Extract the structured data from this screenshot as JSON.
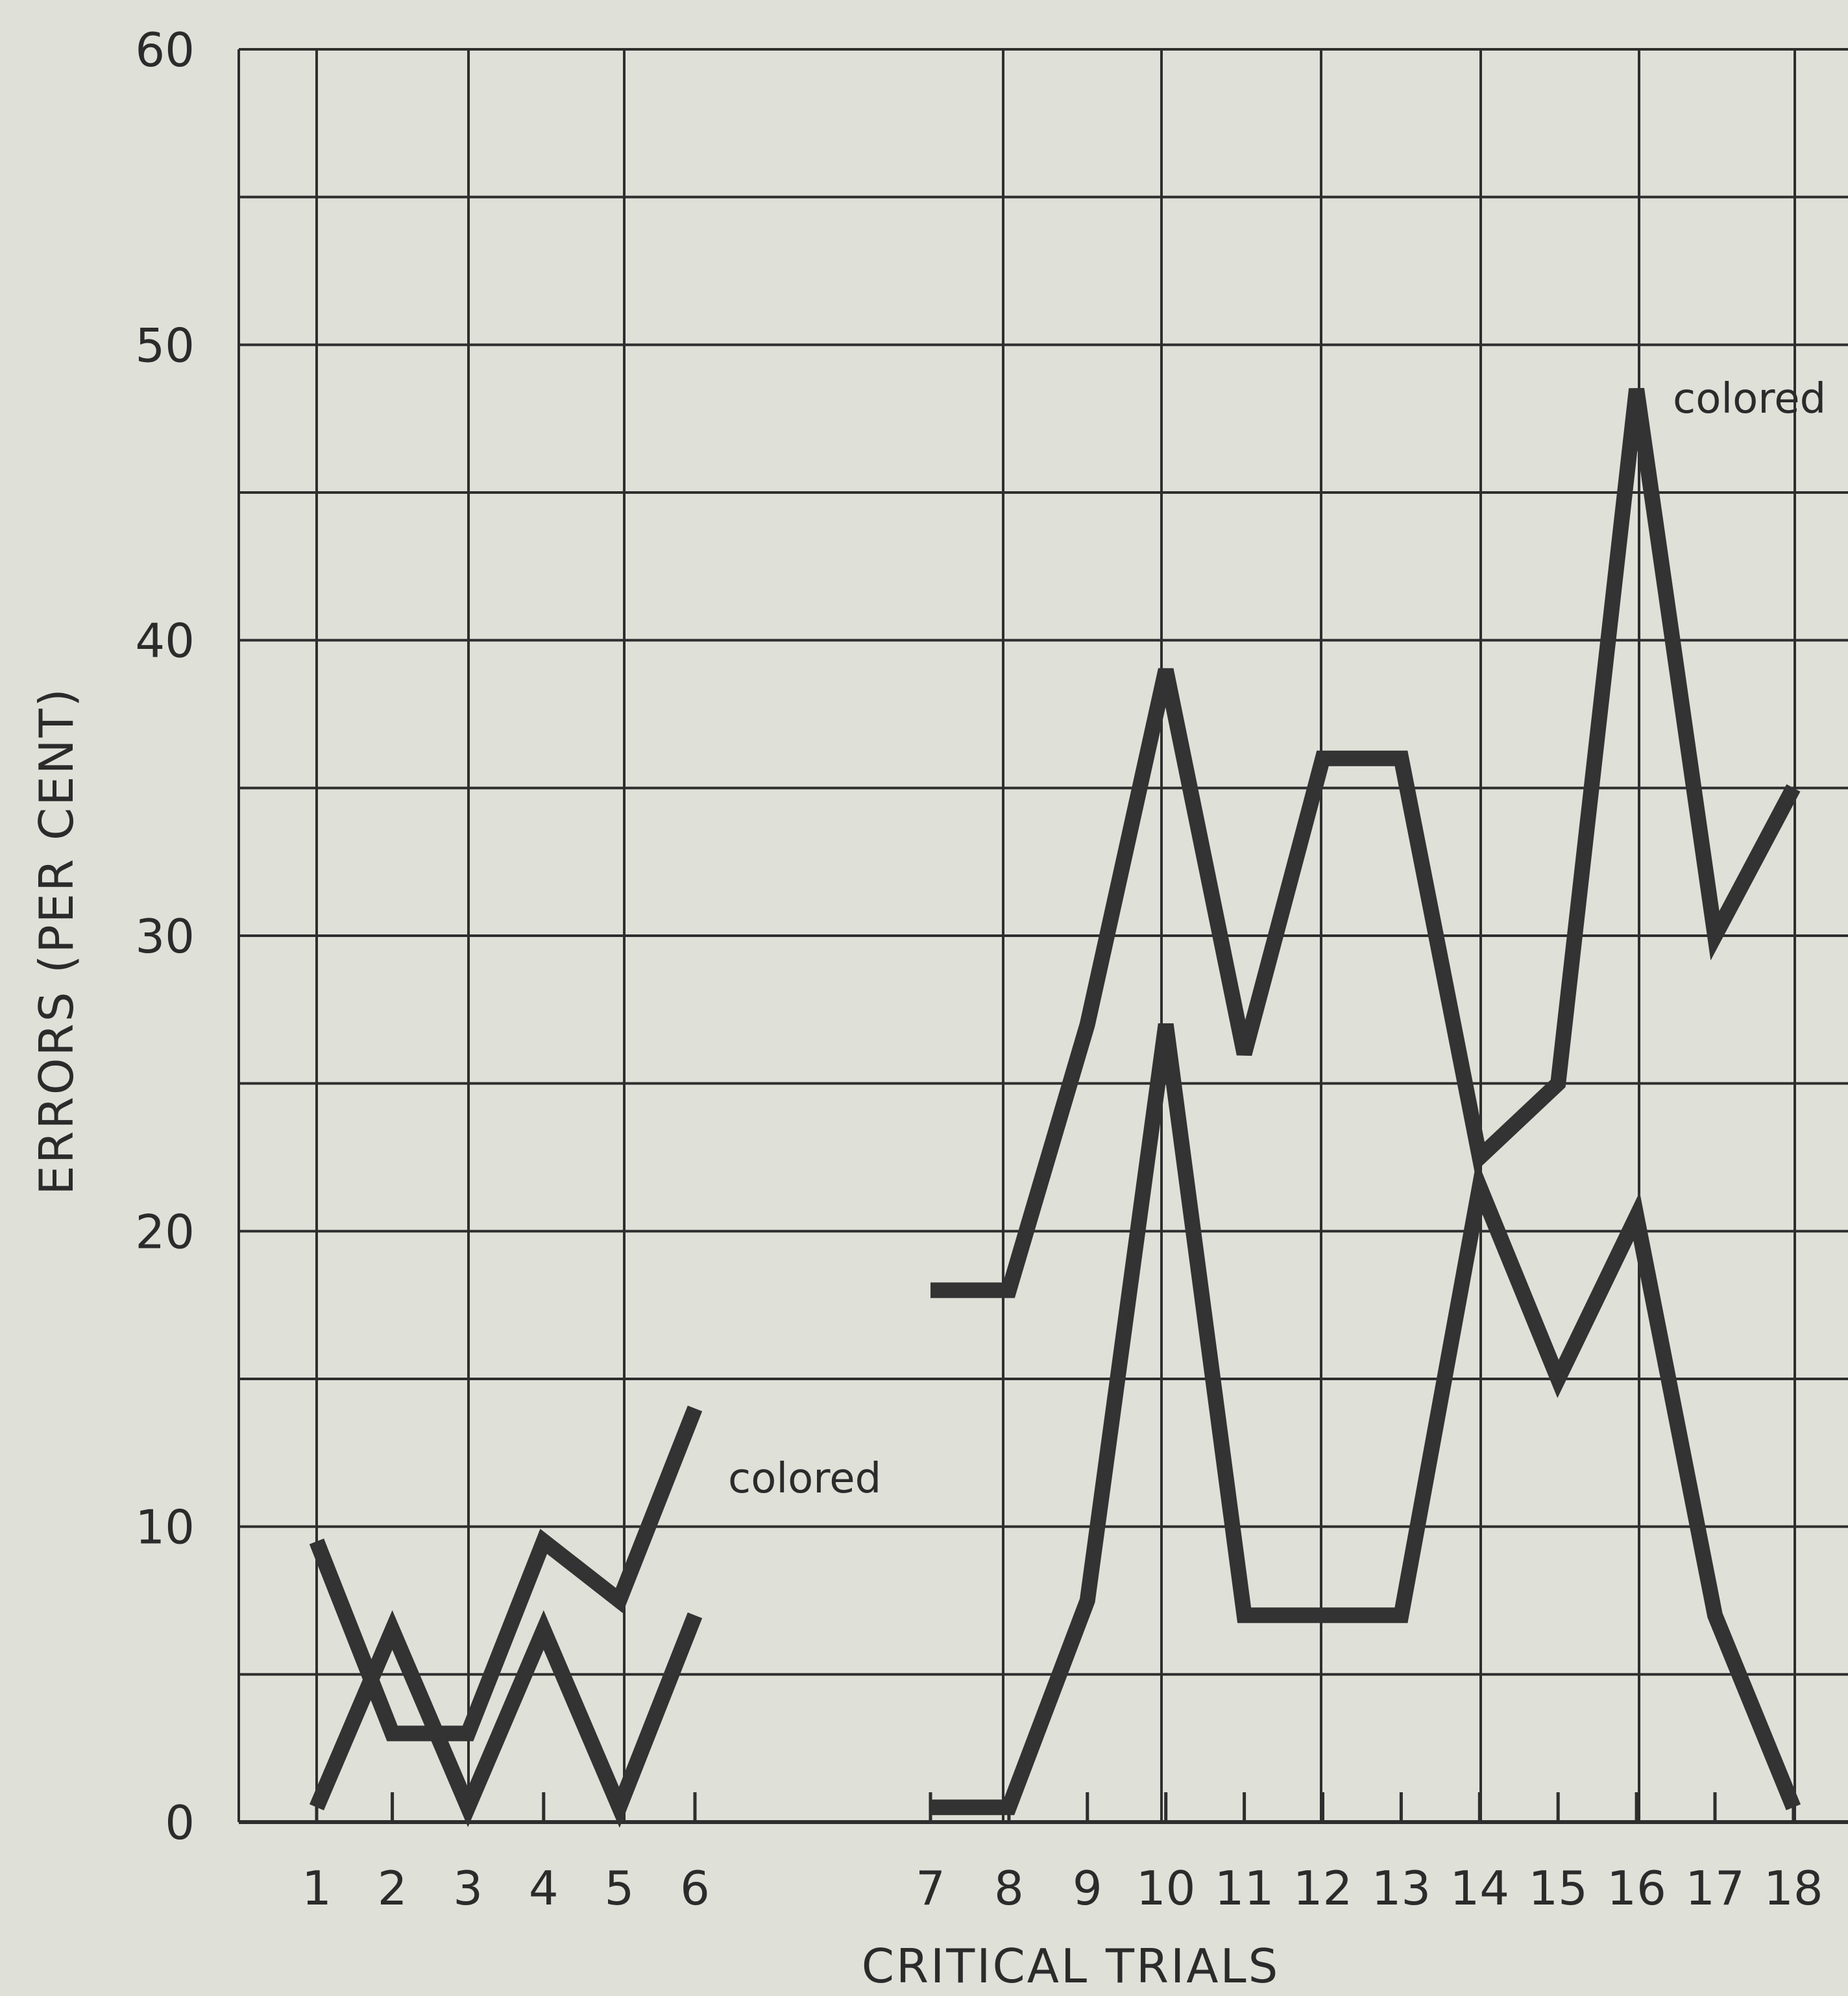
{
  "chart_data": {
    "type": "line",
    "xlabel": "CRITICAL TRIALS",
    "ylabel": "ERRORS (PER CENT)",
    "ylim": [
      0,
      60
    ],
    "y_ticks": [
      "0",
      "10",
      "20",
      "30",
      "40",
      "50",
      "60"
    ],
    "x_ticks": [
      "1",
      "2",
      "3",
      "4",
      "5",
      "6",
      "7",
      "8",
      "9",
      "10",
      "11",
      "12",
      "13",
      "14",
      "15",
      "16",
      "17",
      "18"
    ],
    "grid": true,
    "annotations": [
      "colored",
      "colored"
    ],
    "line_color": "#333333",
    "series": [
      {
        "segments": [
          {
            "x": [
              1,
              2,
              3,
              4,
              5,
              6
            ],
            "y": [
              9.5,
              3,
              3,
              9.5,
              7.5,
              14
            ]
          },
          {
            "x": [
              7,
              8,
              9,
              10,
              11,
              12,
              13,
              14,
              15,
              16,
              17,
              18
            ],
            "y": [
              18,
              18,
              27,
              39,
              26,
              36,
              36,
              22.5,
              25,
              48.5,
              30,
              35
            ]
          }
        ]
      },
      {
        "segments": [
          {
            "x": [
              1,
              2,
              3,
              4,
              5,
              6
            ],
            "y": [
              0.5,
              6.5,
              0.5,
              6.5,
              0.5,
              7
            ]
          },
          {
            "x": [
              7,
              8,
              9,
              10,
              11,
              12,
              13,
              14,
              15,
              16,
              17,
              18
            ],
            "y": [
              0.5,
              0.5,
              7.5,
              27,
              7,
              7,
              7,
              21.5,
              15,
              20.5,
              7,
              0.5
            ]
          }
        ]
      }
    ]
  }
}
